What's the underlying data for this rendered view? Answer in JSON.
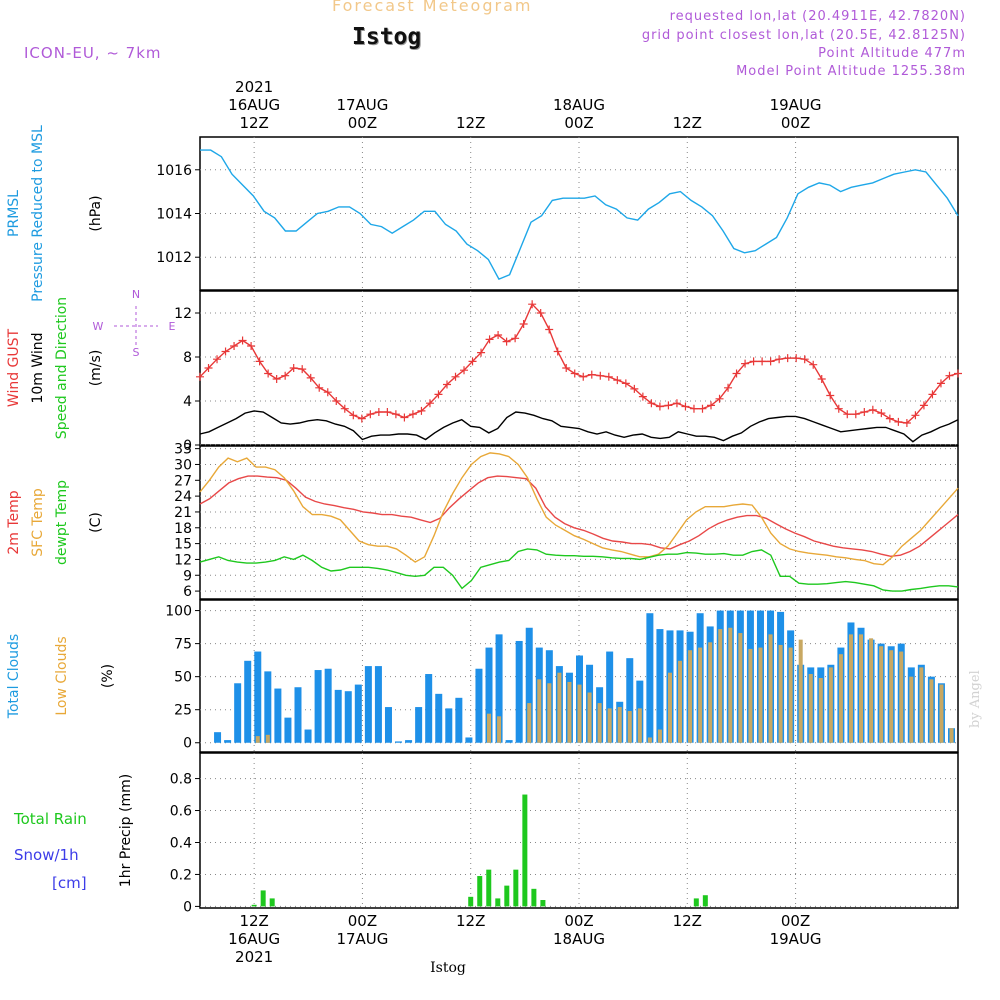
{
  "header": {
    "suptitle": "Forecast Meteogram",
    "location": "Istog",
    "model": "ICON-EU, ~ 7km",
    "requested": "requested lon,lat (20.4911E, 42.7820N)",
    "gridpoint": "grid point closest lon,lat (20.5E, 42.8125N)",
    "point_alt": "Point Altitude 477m",
    "model_alt": "Model Point Altitude 1255.38m",
    "footer_location": "Istog",
    "watermark": "by Angel"
  },
  "time_axis": {
    "start_hour": 0,
    "end_hour": 84,
    "top_labels": [
      {
        "hour": 6,
        "lines": [
          "2021",
          "16AUG",
          "12Z"
        ]
      },
      {
        "hour": 18,
        "lines": [
          "17AUG",
          "00Z"
        ]
      },
      {
        "hour": 30,
        "lines": [
          "12Z"
        ]
      },
      {
        "hour": 42,
        "lines": [
          "18AUG",
          "00Z"
        ]
      },
      {
        "hour": 54,
        "lines": [
          "12Z"
        ]
      },
      {
        "hour": 66,
        "lines": [
          "19AUG",
          "00Z"
        ]
      }
    ],
    "bottom_labels": [
      {
        "hour": 6,
        "lines": [
          "12Z",
          "16AUG",
          "2021"
        ]
      },
      {
        "hour": 18,
        "lines": [
          "00Z",
          "17AUG"
        ]
      },
      {
        "hour": 30,
        "lines": [
          "12Z"
        ]
      },
      {
        "hour": 42,
        "lines": [
          "00Z",
          "18AUG"
        ]
      },
      {
        "hour": 54,
        "lines": [
          "12Z"
        ]
      },
      {
        "hour": 66,
        "lines": [
          "00Z",
          "19AUG"
        ]
      }
    ]
  },
  "chart_data": [
    {
      "type": "line",
      "panel": "pressure",
      "ylabels": [
        {
          "text": "PRMSL",
          "color": "#1e9be0"
        },
        {
          "text": "Pressure Reduced to MSL",
          "color": "#1e9be0"
        },
        {
          "text": "(hPa)",
          "color": "#000000"
        }
      ],
      "ylim": [
        1010.5,
        1017.5
      ],
      "yticks": [
        1012,
        1014,
        1016
      ],
      "series": [
        {
          "color": "#1ea7e8",
          "values": [
            1016.9,
            1016.9,
            1016.6,
            1015.8,
            1015.3,
            1014.8,
            1014.1,
            1013.8,
            1013.2,
            1013.2,
            1013.6,
            1014.0,
            1014.1,
            1014.3,
            1014.3,
            1014.0,
            1013.5,
            1013.4,
            1013.1,
            1013.4,
            1013.7,
            1014.1,
            1014.1,
            1013.5,
            1013.2,
            1012.6,
            1012.3,
            1011.9,
            1011.0,
            1011.2,
            1012.4,
            1013.6,
            1013.9,
            1014.6,
            1014.7,
            1014.7,
            1014.7,
            1014.8,
            1014.4,
            1014.2,
            1013.8,
            1013.7,
            1014.2,
            1014.5,
            1014.9,
            1015.0,
            1014.6,
            1014.3,
            1013.9,
            1013.2,
            1012.4,
            1012.2,
            1012.3,
            1012.6,
            1012.9,
            1013.8,
            1014.9,
            1015.2,
            1015.4,
            1015.3,
            1015.0,
            1015.2,
            1015.3,
            1015.4,
            1015.6,
            1015.8,
            1015.9,
            1016.0,
            1015.9,
            1015.3,
            1014.7,
            1013.9
          ]
        }
      ]
    },
    {
      "type": "line",
      "panel": "wind",
      "ylabels": [
        {
          "text": "Wind GUST",
          "color": "#e83838"
        },
        {
          "text": "10m Wind",
          "color": "#000000"
        },
        {
          "text": "Speed and Direction",
          "color": "#1ec81e"
        },
        {
          "text": "(m/s)",
          "color": "#000000"
        }
      ],
      "compass": {
        "n": "N",
        "s": "S",
        "w": "W",
        "e": "E"
      },
      "ylim": [
        0,
        14
      ],
      "yticks": [
        0,
        4,
        8,
        12
      ],
      "series": [
        {
          "name": "gust",
          "color": "#e83838",
          "marker": "plus",
          "values": [
            6.2,
            7.0,
            7.8,
            8.5,
            9.0,
            9.5,
            9.0,
            7.6,
            6.5,
            6.0,
            6.3,
            7.0,
            6.9,
            6.1,
            5.2,
            4.8,
            4.0,
            3.3,
            2.7,
            2.4,
            2.8,
            3.0,
            3.0,
            2.8,
            2.5,
            2.8,
            3.1,
            3.8,
            4.6,
            5.5,
            6.2,
            6.8,
            7.6,
            8.4,
            9.6,
            10.0,
            9.4,
            9.7,
            11.0,
            12.8,
            12.0,
            10.5,
            8.5,
            7.0,
            6.5,
            6.2,
            6.4,
            6.3,
            6.2,
            5.9,
            5.6,
            5.1,
            4.4,
            3.8,
            3.5,
            3.6,
            3.8,
            3.5,
            3.3,
            3.3,
            3.6,
            4.2,
            5.2,
            6.5,
            7.4,
            7.6,
            7.6,
            7.6,
            7.8,
            7.9,
            7.9,
            7.8,
            7.3,
            6.0,
            4.5,
            3.3,
            2.8,
            2.8,
            3.0,
            3.2,
            2.9,
            2.4,
            2.1,
            2.0,
            2.7,
            3.6,
            4.6,
            5.6,
            6.3,
            6.5
          ]
        },
        {
          "name": "wind",
          "color": "#000000",
          "values": [
            1.0,
            1.2,
            1.6,
            2.0,
            2.4,
            2.9,
            3.1,
            3.0,
            2.5,
            2.0,
            1.9,
            2.0,
            2.2,
            2.3,
            2.2,
            1.9,
            1.7,
            1.3,
            0.5,
            0.8,
            0.9,
            0.9,
            1.0,
            1.0,
            0.9,
            0.5,
            1.1,
            1.6,
            2.0,
            2.3,
            1.7,
            1.6,
            1.1,
            1.5,
            2.5,
            3.0,
            2.9,
            2.7,
            2.4,
            2.2,
            1.7,
            1.6,
            1.5,
            1.2,
            1.0,
            1.2,
            0.9,
            0.7,
            0.9,
            1.0,
            0.7,
            0.6,
            0.7,
            1.2,
            1.0,
            0.8,
            0.8,
            0.7,
            0.4,
            0.8,
            1.1,
            1.7,
            2.1,
            2.4,
            2.5,
            2.6,
            2.6,
            2.4,
            2.1,
            1.8,
            1.5,
            1.2,
            1.3,
            1.4,
            1.5,
            1.6,
            1.6,
            1.3,
            1.0,
            0.3,
            0.9,
            1.2,
            1.6,
            1.9,
            2.3
          ]
        }
      ]
    },
    {
      "type": "line",
      "panel": "temperature",
      "ylabels": [
        {
          "text": "2m Temp",
          "color": "#e83838"
        },
        {
          "text": "SFC Temp",
          "color": "#e8a838"
        },
        {
          "text": "dewpt Temp",
          "color": "#1ec81e"
        },
        {
          "text": "(C)",
          "color": "#000000"
        }
      ],
      "ylim": [
        4.5,
        33.5
      ],
      "yticks": [
        6,
        9,
        12,
        15,
        18,
        21,
        24,
        27,
        30,
        33
      ],
      "series": [
        {
          "name": "2m",
          "color": "#e84848",
          "values": [
            22.5,
            23.5,
            25.0,
            26.5,
            27.3,
            27.8,
            27.8,
            27.6,
            27.5,
            27.0,
            25.5,
            23.8,
            23.0,
            22.5,
            22.2,
            21.8,
            21.5,
            21.0,
            20.8,
            20.5,
            20.5,
            20.2,
            20.0,
            19.5,
            19.0,
            19.8,
            21.8,
            23.5,
            25.0,
            26.5,
            27.5,
            27.8,
            27.7,
            27.5,
            27.3,
            25.5,
            22.0,
            20.0,
            18.8,
            18.0,
            17.5,
            16.8,
            16.0,
            15.5,
            15.3,
            15.0,
            15.0,
            14.8,
            14.2,
            14.0,
            14.8,
            15.5,
            16.5,
            17.8,
            18.8,
            19.5,
            20.0,
            20.3,
            20.3,
            19.8,
            18.8,
            17.8,
            17.0,
            16.3,
            15.5,
            15.0,
            14.5,
            14.2,
            14.0,
            13.8,
            13.5,
            13.0,
            12.6,
            12.8,
            13.5,
            14.5,
            16.0,
            17.5,
            19.0,
            20.5
          ]
        },
        {
          "name": "sfc",
          "color": "#e8a838",
          "values": [
            24.8,
            27.0,
            29.5,
            31.2,
            30.5,
            31.2,
            29.5,
            29.5,
            29.0,
            27.5,
            25.0,
            22.0,
            20.5,
            20.5,
            20.2,
            19.5,
            17.5,
            15.5,
            14.8,
            14.5,
            14.5,
            14.0,
            12.8,
            11.5,
            12.5,
            16.5,
            21.0,
            24.5,
            27.5,
            30.0,
            31.5,
            32.2,
            32.0,
            31.5,
            30.0,
            27.5,
            23.5,
            20.0,
            18.5,
            17.5,
            16.5,
            15.8,
            15.0,
            14.2,
            13.8,
            13.5,
            13.0,
            12.5,
            12.5,
            13.0,
            14.5,
            17.0,
            19.5,
            21.0,
            22.0,
            22.0,
            22.0,
            22.3,
            22.5,
            22.3,
            20.0,
            17.0,
            15.0,
            14.0,
            13.5,
            13.2,
            13.0,
            12.8,
            12.5,
            12.3,
            12.0,
            11.8,
            11.2,
            11.0,
            12.5,
            14.5,
            16.0,
            17.5,
            19.5,
            21.5,
            23.5,
            25.5
          ]
        },
        {
          "name": "dewpt",
          "color": "#1ec81e",
          "values": [
            11.5,
            12.0,
            12.5,
            11.8,
            11.5,
            11.3,
            11.3,
            11.5,
            11.8,
            12.5,
            12.0,
            12.8,
            11.8,
            10.5,
            9.8,
            10.0,
            10.5,
            10.5,
            10.5,
            10.3,
            10.0,
            9.5,
            9.0,
            8.8,
            9.0,
            10.5,
            10.5,
            9.0,
            6.5,
            8.0,
            10.5,
            11.0,
            11.5,
            11.8,
            13.5,
            14.0,
            13.8,
            13.0,
            12.8,
            12.7,
            12.7,
            12.6,
            12.6,
            12.5,
            12.3,
            12.2,
            12.2,
            12.0,
            12.4,
            12.8,
            13.0,
            13.0,
            13.3,
            13.2,
            13.0,
            13.0,
            13.1,
            12.8,
            12.8,
            13.5,
            13.8,
            12.8,
            8.8,
            8.8,
            7.5,
            7.3,
            7.3,
            7.4,
            7.6,
            7.8,
            7.6,
            7.3,
            7.0,
            6.2,
            6.0,
            6.0,
            6.3,
            6.5,
            6.8,
            7.0,
            7.0,
            6.8
          ]
        }
      ]
    },
    {
      "type": "bar",
      "panel": "clouds",
      "ylabels": [
        {
          "text": "Total Clouds",
          "color": "#1e9be0"
        },
        {
          "text": "Low Clouds",
          "color": "#e8a838"
        },
        {
          "text": "(%)",
          "color": "#000000"
        }
      ],
      "ylim": [
        -7,
        108
      ],
      "yticks": [
        0,
        25,
        50,
        75,
        100
      ],
      "series": [
        {
          "name": "total",
          "color": "#1e90e8",
          "values": [
            0,
            8,
            2,
            45,
            62,
            69,
            54,
            41,
            19,
            42,
            10,
            55,
            56,
            40,
            39,
            44,
            58,
            58,
            27,
            1,
            2,
            27,
            52,
            37,
            26,
            34,
            4,
            56,
            72,
            82,
            2,
            77,
            87,
            72,
            70,
            58,
            53,
            66,
            59,
            42,
            69,
            31,
            64,
            47,
            98,
            86,
            85,
            85,
            84,
            98,
            88,
            100,
            100,
            100,
            100,
            100,
            100,
            99,
            85,
            59,
            57,
            57,
            59,
            72,
            91,
            87,
            78,
            75,
            73,
            75,
            57,
            59,
            50,
            45,
            11
          ]
        },
        {
          "name": "low",
          "color": "#c8a862",
          "values": [
            0,
            0,
            0,
            0,
            0,
            5,
            6,
            0,
            0,
            0,
            0,
            0,
            0,
            0,
            0,
            0,
            0,
            0,
            0,
            0,
            0,
            0,
            0,
            0,
            0,
            0,
            0,
            0,
            22,
            20,
            0,
            0,
            30,
            48,
            45,
            53,
            46,
            44,
            38,
            30,
            26,
            27,
            24,
            26,
            4,
            10,
            53,
            62,
            70,
            72,
            76,
            86,
            87,
            83,
            71,
            72,
            82,
            74,
            72,
            78,
            52,
            49,
            57,
            67,
            82,
            82,
            79,
            73,
            70,
            69,
            50,
            57,
            48,
            44,
            11
          ]
        }
      ]
    },
    {
      "type": "bar",
      "panel": "precip",
      "ylabels": [
        {
          "text": "1hr Precip (mm)",
          "color": "#000000"
        }
      ],
      "side_labels": [
        {
          "text": "Total   Rain",
          "color": "#1ec81e"
        },
        {
          "text": "Snow/1h",
          "color": "#3c3ce8"
        },
        {
          "text": "[cm]",
          "color": "#3c3ce8"
        }
      ],
      "ylim": [
        -0.01,
        0.96
      ],
      "yticks": [
        0,
        0.2,
        0.4,
        0.6,
        0.8
      ],
      "series": [
        {
          "name": "rain",
          "color": "#1ec81e",
          "hours": [
            6,
            7,
            8,
            30,
            31,
            32,
            33,
            34,
            35,
            36,
            37,
            38,
            55,
            56
          ],
          "values": [
            0.01,
            0.1,
            0.05,
            0.06,
            0.19,
            0.23,
            0.05,
            0.13,
            0.23,
            0.7,
            0.11,
            0.04,
            0.05,
            0.07
          ]
        }
      ]
    }
  ]
}
